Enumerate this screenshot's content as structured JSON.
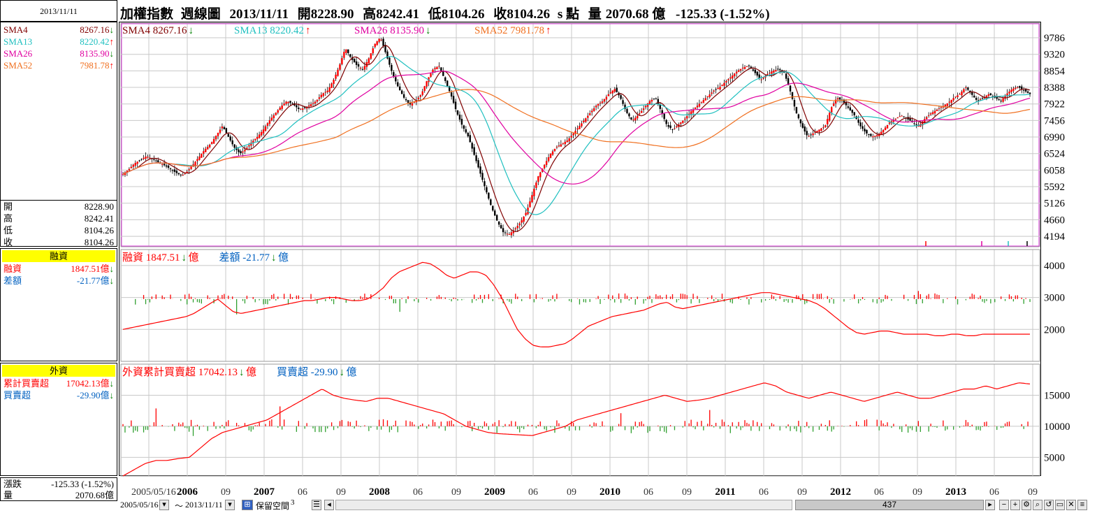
{
  "header": {
    "date": "2013/11/11",
    "title": "加權指數",
    "period": "週線圖",
    "title_date": "2013/11/11",
    "open_label": "開",
    "open": "8228.90",
    "high_label": "高",
    "high": "8242.41",
    "low_label": "低",
    "low": "8104.26",
    "close_label": "收",
    "close": "8104.26",
    "unit": "s 點",
    "volume_label": "量",
    "volume": "2070.68 億",
    "change": "-125.33 (-1.52%)"
  },
  "sidebar": {
    "sma": [
      {
        "name": "SMA4",
        "value": "8267.16",
        "dir": "down",
        "color": "#800000"
      },
      {
        "name": "SMA13",
        "value": "8220.42",
        "dir": "up",
        "color": "#20c0c0"
      },
      {
        "name": "SMA26",
        "value": "8135.90",
        "dir": "down",
        "color": "#e000a0"
      },
      {
        "name": "SMA52",
        "value": "7981.78",
        "dir": "up",
        "color": "#f07020"
      }
    ],
    "ohlc": [
      {
        "label": "開",
        "value": "8228.90"
      },
      {
        "label": "高",
        "value": "8242.41"
      },
      {
        "label": "低",
        "value": "8104.26"
      },
      {
        "label": "收",
        "value": "8104.26"
      }
    ],
    "margin_title": "融資",
    "margin_rows": [
      {
        "label": "融資",
        "value": "1847.51億",
        "dir": "down",
        "color": "#ff0000"
      },
      {
        "label": "差額",
        "value": "-21.77億",
        "dir": "down",
        "color": "#0060c0"
      }
    ],
    "foreign_title": "外資",
    "foreign_rows": [
      {
        "label": "累計買賣超",
        "value": "17042.13億",
        "dir": "down",
        "color": "#ff0000"
      },
      {
        "label": "買賣超",
        "value": "-29.90億",
        "dir": "down",
        "color": "#0060c0"
      }
    ],
    "change_label": "漲跌",
    "change": "-125.33 (-1.52%)",
    "volume_label": "量",
    "volume": "2070.68億"
  },
  "margin_legend": [
    {
      "name": "融資",
      "value": "1847.51",
      "dir": "down",
      "unit": "億",
      "color": "#ff0000"
    },
    {
      "name": "差額",
      "value": "-21.77",
      "dir": "down",
      "unit": "億",
      "color": "#0060c0"
    }
  ],
  "foreign_legend": [
    {
      "name": "外資累計買賣超",
      "value": "17042.13",
      "dir": "down",
      "unit": "億",
      "color": "#ff0000"
    },
    {
      "name": "買賣超",
      "value": "-29.90",
      "dir": "down",
      "unit": "億",
      "color": "#0060c0"
    }
  ],
  "toolbar": {
    "start_date": "2005/05/16",
    "tilde": "～",
    "end_date": "2013/11/11",
    "reserve_label": "保留空間",
    "reserve_value": "3",
    "scroll_value": "437"
  },
  "chart_data": [
    {
      "type": "line",
      "name": "price",
      "x_ticks": [
        "2005/05/16",
        "2006",
        "09",
        "2007",
        "06",
        "09",
        "2008",
        "06",
        "09",
        "2009",
        "06",
        "09",
        "2010",
        "06",
        "09",
        "2011",
        "06",
        "09",
        "2012",
        "06",
        "09",
        "2013",
        "06",
        "09"
      ],
      "y_ticks": [
        4194,
        4660,
        5126,
        5592,
        6058,
        6524,
        6990,
        7456,
        7922,
        8388,
        8854,
        9320,
        9786
      ],
      "ylim": [
        3900,
        10200
      ],
      "close": [
        5950,
        6080,
        6250,
        6350,
        6450,
        6380,
        6280,
        6200,
        6100,
        5990,
        5900,
        6020,
        6220,
        6430,
        6640,
        6800,
        7050,
        7300,
        7000,
        6700,
        6520,
        6650,
        6850,
        7000,
        7200,
        7450,
        7650,
        7850,
        8000,
        7920,
        7780,
        7800,
        7900,
        8000,
        8200,
        8300,
        8600,
        9000,
        9500,
        9200,
        9000,
        8900,
        9200,
        9600,
        9800,
        9300,
        8800,
        8400,
        8100,
        7900,
        8000,
        8200,
        8600,
        8900,
        9000,
        8600,
        8200,
        7700,
        7300,
        7000,
        6500,
        6000,
        5500,
        5000,
        4600,
        4300,
        4250,
        4400,
        4600,
        4900,
        5400,
        5900,
        6200,
        6500,
        6700,
        6800,
        6900,
        7100,
        7300,
        7500,
        7700,
        7900,
        8000,
        8200,
        8350,
        8100,
        7700,
        7450,
        7600,
        7800,
        8000,
        8100,
        7700,
        7300,
        7200,
        7350,
        7500,
        7700,
        7850,
        8000,
        8150,
        8300,
        8400,
        8550,
        8700,
        8850,
        8950,
        9000,
        8800,
        8600,
        8750,
        8850,
        8900,
        8800,
        8300,
        7700,
        7300,
        7000,
        7100,
        7200,
        7300,
        7800,
        8100,
        8000,
        7800,
        7600,
        7300,
        7100,
        7000,
        7050,
        7200,
        7400,
        7500,
        7600,
        7500,
        7400,
        7300,
        7500,
        7650,
        7750,
        7850,
        7950,
        8100,
        8200,
        8400,
        8200,
        8000,
        8100,
        8200,
        8100,
        8000,
        8200,
        8350,
        8400,
        8300,
        8200
      ],
      "series": [
        {
          "name": "SMA4",
          "value": 8267.16,
          "color": "#800000"
        },
        {
          "name": "SMA13",
          "value": 8220.42,
          "color": "#20c0c0"
        },
        {
          "name": "SMA26",
          "value": 8135.9,
          "color": "#e000a0"
        },
        {
          "name": "SMA52",
          "value": 7981.78,
          "color": "#f07020"
        }
      ]
    },
    {
      "type": "bar",
      "name": "margin",
      "y_ticks": [
        2000,
        3000,
        4000
      ],
      "ylim": [
        1000,
        4500
      ],
      "line": [
        2000,
        2050,
        2100,
        2150,
        2200,
        2250,
        2300,
        2350,
        2400,
        2500,
        2650,
        2800,
        2950,
        2750,
        2550,
        2500,
        2550,
        2600,
        2650,
        2700,
        2750,
        2800,
        2850,
        2900,
        2900,
        2950,
        3000,
        3000,
        2950,
        2900,
        2900,
        2950,
        3100,
        3300,
        3600,
        3800,
        3900,
        4000,
        4100,
        4050,
        3900,
        3700,
        3600,
        3700,
        3800,
        3800,
        3700,
        3400,
        3000,
        2500,
        2000,
        1700,
        1500,
        1450,
        1450,
        1500,
        1550,
        1700,
        1900,
        2100,
        2200,
        2300,
        2400,
        2450,
        2500,
        2550,
        2600,
        2700,
        2800,
        2850,
        2700,
        2650,
        2700,
        2750,
        2800,
        2850,
        2900,
        2950,
        3000,
        3050,
        3100,
        3150,
        3150,
        3100,
        3050,
        3000,
        2950,
        2900,
        2800,
        2650,
        2450,
        2250,
        2050,
        1900,
        1850,
        1900,
        1950,
        1950,
        1900,
        1850,
        1850,
        1850,
        1850,
        1800,
        1800,
        1850,
        1850,
        1800,
        1800,
        1850,
        1850,
        1850,
        1850,
        1850,
        1850,
        1850
      ]
    },
    {
      "type": "bar",
      "name": "foreign",
      "y_ticks": [
        5000,
        10000,
        15000
      ],
      "ylim": [
        2000,
        20000
      ],
      "line": [
        2000,
        3000,
        4000,
        4500,
        4500,
        4800,
        5000,
        6500,
        8000,
        9000,
        9500,
        10000,
        10500,
        11000,
        12000,
        13000,
        14000,
        15000,
        16000,
        15000,
        14500,
        14200,
        14000,
        14500,
        14500,
        14000,
        13500,
        13000,
        12500,
        12000,
        11000,
        10000,
        9500,
        9000,
        8800,
        8700,
        8600,
        8500,
        9000,
        9500,
        10000,
        11000,
        11500,
        12000,
        12500,
        13000,
        13500,
        14000,
        14500,
        15000,
        14500,
        14000,
        14200,
        14500,
        15000,
        15500,
        16000,
        16500,
        17000,
        16500,
        15500,
        15000,
        14500,
        15000,
        15500,
        15000,
        14500,
        14000,
        14500,
        15000,
        15500,
        15000,
        14500,
        14500,
        15000,
        15500,
        16000,
        16000,
        16500,
        16000,
        16500,
        17000,
        16800
      ]
    }
  ]
}
